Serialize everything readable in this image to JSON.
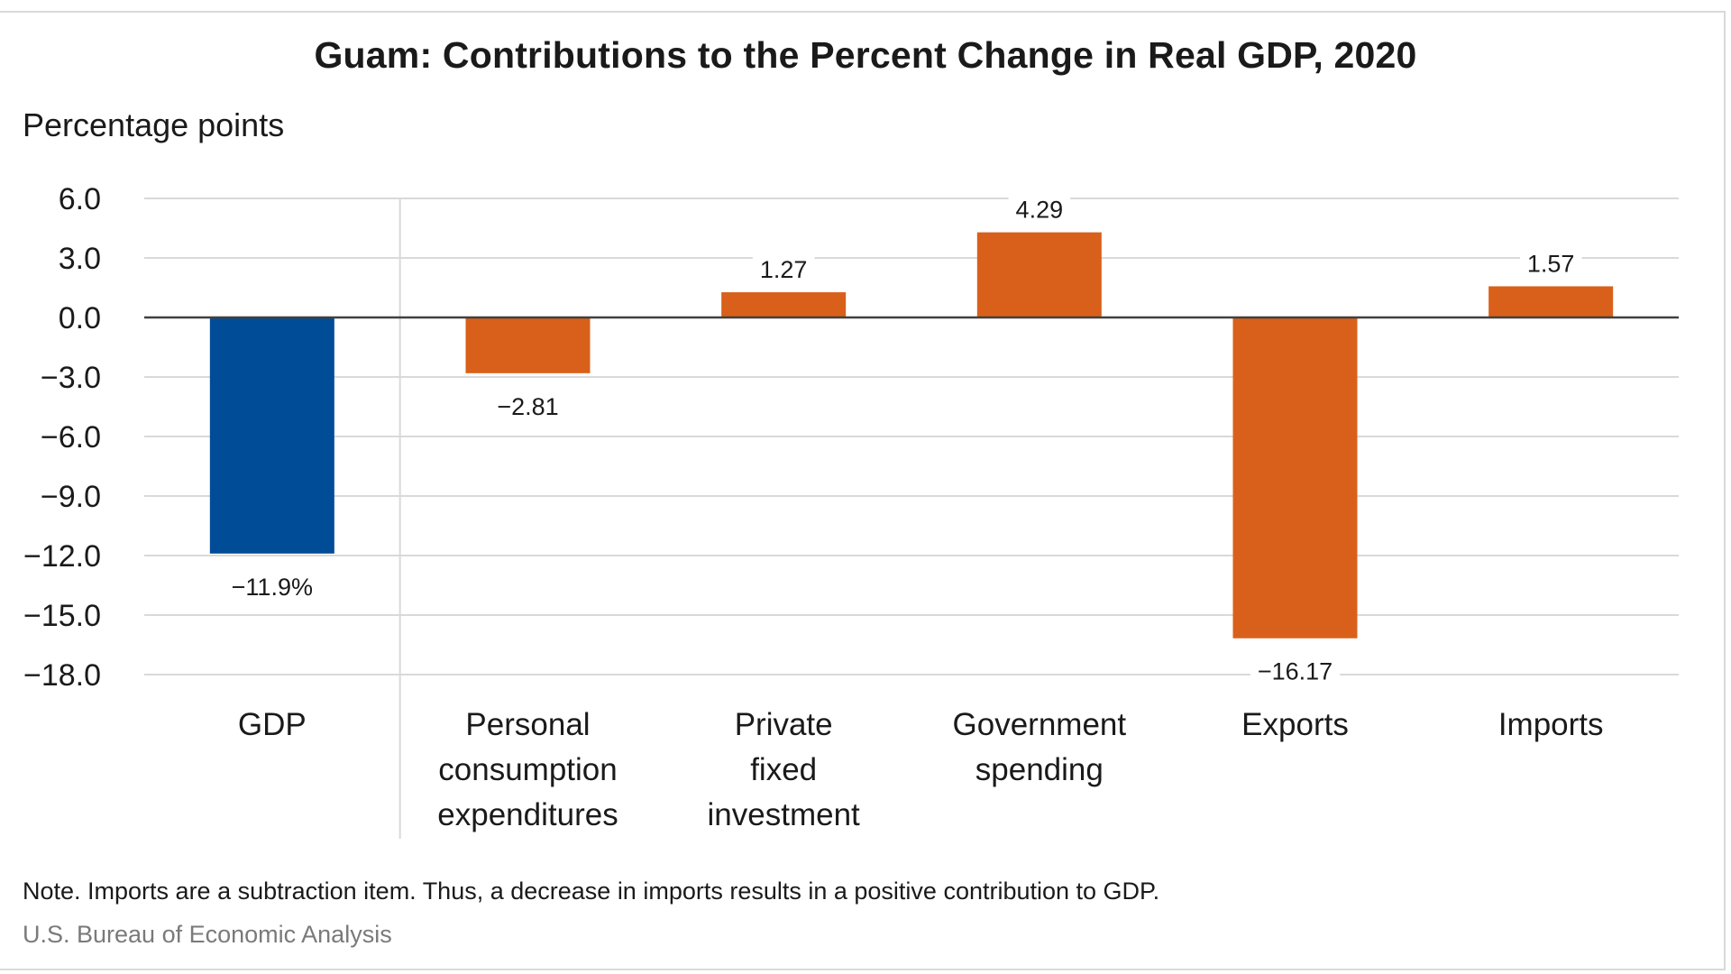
{
  "chart_data": {
    "type": "bar",
    "title": "Guam: Contributions to the Percent Change in Real GDP, 2020",
    "ylabel": "Percentage points",
    "xlabel": "",
    "ylim": [
      -18.0,
      6.0
    ],
    "yticks": [
      "6.0",
      "3.0",
      "0.0",
      "−3.0",
      "−6.0",
      "−9.0",
      "−12.0",
      "−15.0",
      "−18.0"
    ],
    "ytick_values": [
      6,
      3,
      0,
      -3,
      -6,
      -9,
      -12,
      -15,
      -18
    ],
    "categories": [
      [
        "GDP"
      ],
      [
        "Personal",
        "consumption",
        "expenditures"
      ],
      [
        "Private",
        "fixed",
        "investment"
      ],
      [
        "Government",
        "spending"
      ],
      [
        "Exports"
      ],
      [
        "Imports"
      ]
    ],
    "values": [
      -11.9,
      -2.81,
      1.27,
      4.29,
      -16.17,
      1.57
    ],
    "data_labels": [
      "−11.9%",
      "−2.81",
      "1.27",
      "4.29",
      "−16.17",
      "1.57"
    ],
    "colors": [
      "#004C97",
      "#D9601A",
      "#D9601A",
      "#D9601A",
      "#D9601A",
      "#D9601A"
    ],
    "grid": true,
    "note": "Note. Imports are a subtraction item. Thus, a decrease in imports results in a positive contribution to GDP.",
    "source": "U.S. Bureau of Economic Analysis"
  }
}
